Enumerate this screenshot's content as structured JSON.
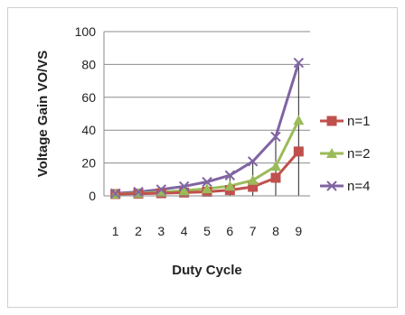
{
  "chart_data": {
    "type": "line",
    "xlabel": "Duty Cycle",
    "ylabel": "Voltage Gain VO/VS",
    "categories": [
      "1",
      "2",
      "3",
      "4",
      "5",
      "6",
      "7",
      "8",
      "9"
    ],
    "ylim": [
      0,
      100
    ],
    "yticks": [
      "0",
      "20",
      "40",
      "60",
      "80",
      "100"
    ],
    "grid": true,
    "legend_position": "right",
    "series": [
      {
        "name": "n=1",
        "color": "#c0504d",
        "marker": "square",
        "values": [
          1.1,
          1.3,
          1.6,
          2.0,
          2.5,
          3.5,
          5.5,
          11,
          27
        ]
      },
      {
        "name": "n=2",
        "color": "#9bbb59",
        "marker": "triangle",
        "values": [
          1.2,
          1.6,
          2.3,
          3.2,
          4.3,
          6.0,
          9.5,
          18,
          46
        ]
      },
      {
        "name": "n=4",
        "color": "#8064a2",
        "marker": "x",
        "values": [
          1.5,
          2.4,
          3.9,
          5.8,
          8.5,
          12.5,
          21,
          36,
          81
        ]
      }
    ]
  }
}
